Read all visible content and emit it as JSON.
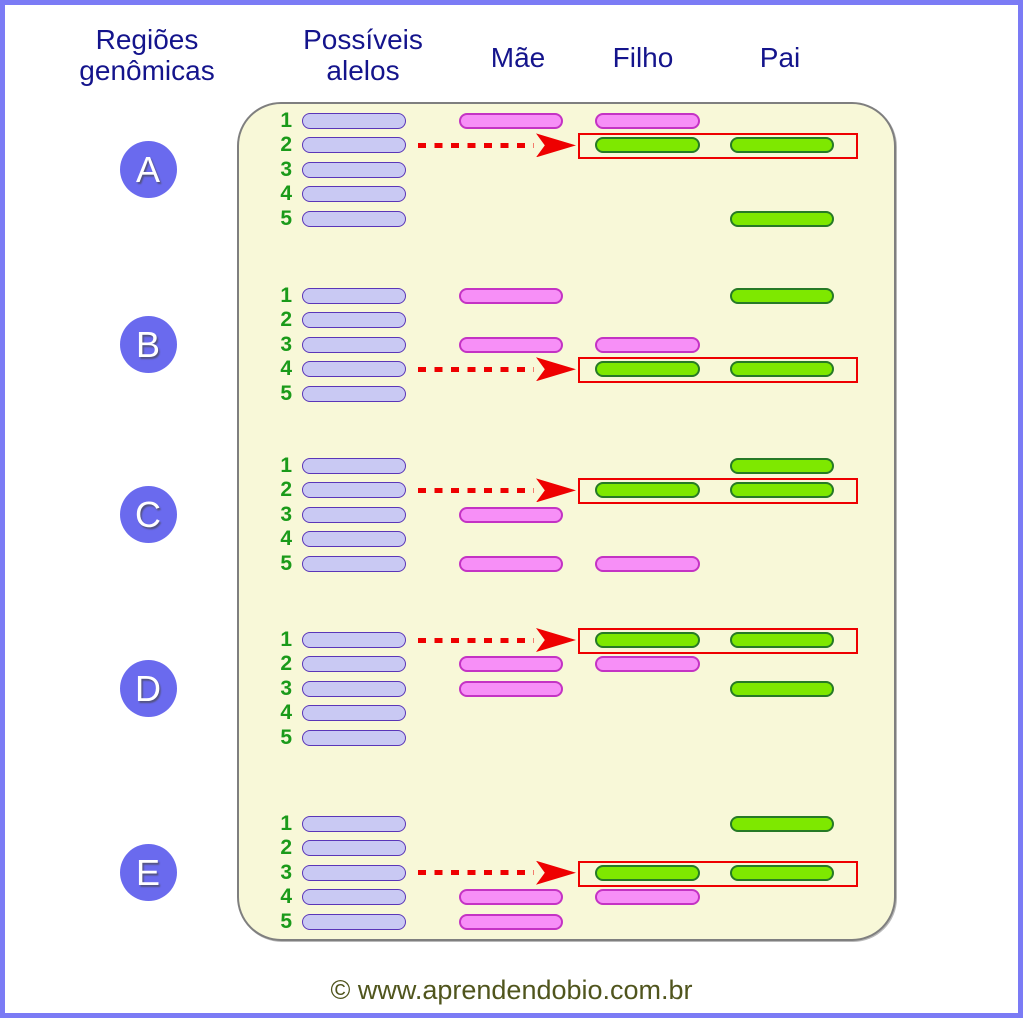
{
  "page": {
    "border_color": "#7b7bf5",
    "background": "#ffffff"
  },
  "headers": {
    "text_color": "#14148c",
    "regioes": "Regiões\ngenômicas",
    "possiveis": "Possíveis\nalelos",
    "mae": "Mãe",
    "filho": "Filho",
    "pai": "Pai"
  },
  "panel": {
    "background": "#f8f8d8",
    "border_color": "#7f7f7f"
  },
  "colors": {
    "allele_fill": "#c9c9f3",
    "allele_border": "#5a36b8",
    "pink_fill": "#f78ff7",
    "pink_border": "#c433c4",
    "green_fill": "#7ee800",
    "green_border": "#267a26",
    "number_green": "#1a9a1a",
    "highlight_red": "#ee0000",
    "circle_fill": "#6a6aee",
    "circle_text": "#ffffff"
  },
  "regions": [
    {
      "label": "A",
      "allele_numbers": [
        "1",
        "2",
        "3",
        "4",
        "5"
      ],
      "match_row": 2,
      "mae": [
        {
          "row": 1,
          "color": "pink"
        }
      ],
      "filho": [
        {
          "row": 1,
          "color": "pink"
        },
        {
          "row": 2,
          "color": "green"
        }
      ],
      "pai": [
        {
          "row": 2,
          "color": "green"
        },
        {
          "row": 5,
          "color": "green"
        }
      ]
    },
    {
      "label": "B",
      "allele_numbers": [
        "1",
        "2",
        "3",
        "4",
        "5"
      ],
      "match_row": 4,
      "mae": [
        {
          "row": 1,
          "color": "pink"
        },
        {
          "row": 3,
          "color": "pink"
        }
      ],
      "filho": [
        {
          "row": 3,
          "color": "pink"
        },
        {
          "row": 4,
          "color": "green"
        }
      ],
      "pai": [
        {
          "row": 1,
          "color": "green"
        },
        {
          "row": 4,
          "color": "green"
        }
      ]
    },
    {
      "label": "C",
      "allele_numbers": [
        "1",
        "2",
        "3",
        "4",
        "5"
      ],
      "match_row": 2,
      "mae": [
        {
          "row": 3,
          "color": "pink"
        },
        {
          "row": 5,
          "color": "pink"
        }
      ],
      "filho": [
        {
          "row": 2,
          "color": "green"
        },
        {
          "row": 5,
          "color": "pink"
        }
      ],
      "pai": [
        {
          "row": 1,
          "color": "green"
        },
        {
          "row": 2,
          "color": "green"
        }
      ]
    },
    {
      "label": "D",
      "allele_numbers": [
        "1",
        "2",
        "3",
        "4",
        "5"
      ],
      "match_row": 1,
      "mae": [
        {
          "row": 2,
          "color": "pink"
        },
        {
          "row": 3,
          "color": "pink"
        }
      ],
      "filho": [
        {
          "row": 1,
          "color": "green"
        },
        {
          "row": 2,
          "color": "pink"
        }
      ],
      "pai": [
        {
          "row": 1,
          "color": "green"
        },
        {
          "row": 3,
          "color": "green"
        }
      ]
    },
    {
      "label": "E",
      "allele_numbers": [
        "1",
        "2",
        "3",
        "4",
        "5"
      ],
      "match_row": 3,
      "mae": [
        {
          "row": 4,
          "color": "pink"
        },
        {
          "row": 5,
          "color": "pink"
        }
      ],
      "filho": [
        {
          "row": 3,
          "color": "green"
        },
        {
          "row": 4,
          "color": "pink"
        }
      ],
      "pai": [
        {
          "row": 1,
          "color": "green"
        },
        {
          "row": 3,
          "color": "green"
        }
      ]
    }
  ],
  "footer": {
    "copyright": "© www.aprendendobio.com.br",
    "text_color": "#50551d"
  }
}
